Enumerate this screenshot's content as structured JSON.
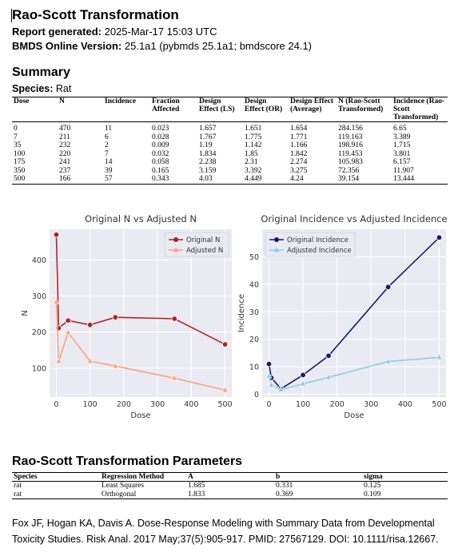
{
  "report": {
    "title": "Rao-Scott Transformation",
    "generated_label": "Report generated:",
    "generated_value": "2025-Mar-17 15:03 UTC",
    "version_label": "BMDS Online Version:",
    "version_value": "25.1a1 (pybmds 25.1a1; bmdscore 24.1)"
  },
  "summary": {
    "heading": "Summary",
    "species_label": "Species:",
    "species_value": "Rat",
    "columns": [
      "Dose",
      "N",
      "Incidence",
      "Fraction Affected",
      "Design Effect (LS)",
      "Design Effect (OR)",
      "Design Effect (Average)",
      "N (Rao-Scott Transformed)",
      "Incidence (Rao-Scott Transformed)"
    ],
    "rows": [
      [
        "0",
        "470",
        "11",
        "0.023",
        "1.657",
        "1.651",
        "1.654",
        "284.156",
        "6.65"
      ],
      [
        "7",
        "211",
        "6",
        "0.028",
        "1.767",
        "1.775",
        "1.771",
        "119.163",
        "3.389"
      ],
      [
        "35",
        "232",
        "2",
        "0.009",
        "1.19",
        "1.142",
        "1.166",
        "198.916",
        "1.715"
      ],
      [
        "100",
        "220",
        "7",
        "0.032",
        "1.834",
        "1.85",
        "1.842",
        "119.453",
        "3.801"
      ],
      [
        "175",
        "241",
        "14",
        "0.058",
        "2.238",
        "2.31",
        "2.274",
        "105.983",
        "6.157"
      ],
      [
        "350",
        "237",
        "39",
        "0.165",
        "3.159",
        "3.392",
        "3.275",
        "72.356",
        "11.907"
      ],
      [
        "500",
        "166",
        "57",
        "0.343",
        "4.03",
        "4.449",
        "4.24",
        "39.154",
        "13.444"
      ]
    ]
  },
  "chart_data": [
    {
      "type": "line",
      "title": "Original N vs Adjusted N",
      "xlabel": "Dose",
      "ylabel": "N",
      "xlim": [
        -20,
        520
      ],
      "ylim": [
        20,
        485
      ],
      "xticks": [
        0,
        100,
        200,
        300,
        400,
        500
      ],
      "yticks": [
        100,
        200,
        300,
        400
      ],
      "grid": true,
      "legend": "top-right",
      "series": [
        {
          "name": "Original N",
          "color": "#b22222",
          "marker": "circle",
          "x": [
            0,
            7,
            35,
            100,
            175,
            350,
            500
          ],
          "y": [
            470,
            211,
            232,
            220,
            241,
            237,
            166
          ]
        },
        {
          "name": "Adjusted N",
          "color": "#ffa07a",
          "marker": "triangle",
          "x": [
            0,
            7,
            35,
            100,
            175,
            350,
            500
          ],
          "y": [
            284.156,
            119.163,
            198.916,
            119.453,
            105.983,
            72.356,
            39.154
          ]
        }
      ]
    },
    {
      "type": "line",
      "title": "Original Incidence vs Adjusted Incidence",
      "xlabel": "Dose",
      "ylabel": "Incidence",
      "xlim": [
        -20,
        520
      ],
      "ylim": [
        -1,
        60
      ],
      "xticks": [
        0,
        100,
        200,
        300,
        400,
        500
      ],
      "yticks": [
        0,
        10,
        20,
        30,
        40,
        50
      ],
      "grid": true,
      "legend": "top-left",
      "series": [
        {
          "name": "Original Incidence",
          "color": "#191970",
          "marker": "circle",
          "x": [
            0,
            7,
            35,
            100,
            175,
            350,
            500
          ],
          "y": [
            11,
            6,
            2,
            7,
            14,
            39,
            57
          ]
        },
        {
          "name": "Adjusted Incidence",
          "color": "#87ceeb",
          "marker": "triangle",
          "x": [
            0,
            7,
            35,
            100,
            175,
            350,
            500
          ],
          "y": [
            6.65,
            3.389,
            1.715,
            3.801,
            6.157,
            11.907,
            13.444
          ]
        }
      ]
    }
  ],
  "parameters": {
    "heading": "Rao-Scott Transformation Parameters",
    "columns": [
      "Species",
      "Regression Method",
      "A",
      "b",
      "sigma"
    ],
    "rows": [
      [
        "rat",
        "Least Squares",
        "1.685",
        "0.331",
        "0.125"
      ],
      [
        "rat",
        "Orthogonal",
        "1.833",
        "0.369",
        "0.109"
      ]
    ]
  },
  "citation": "Fox JF, Hogan KA, Davis A. Dose-Response Modeling with Summary Data from Developmental Toxicity Studies. Risk Anal. 2017 May;37(5):905-917. PMID: 27567129. DOI: 10.1111/risa.12667."
}
